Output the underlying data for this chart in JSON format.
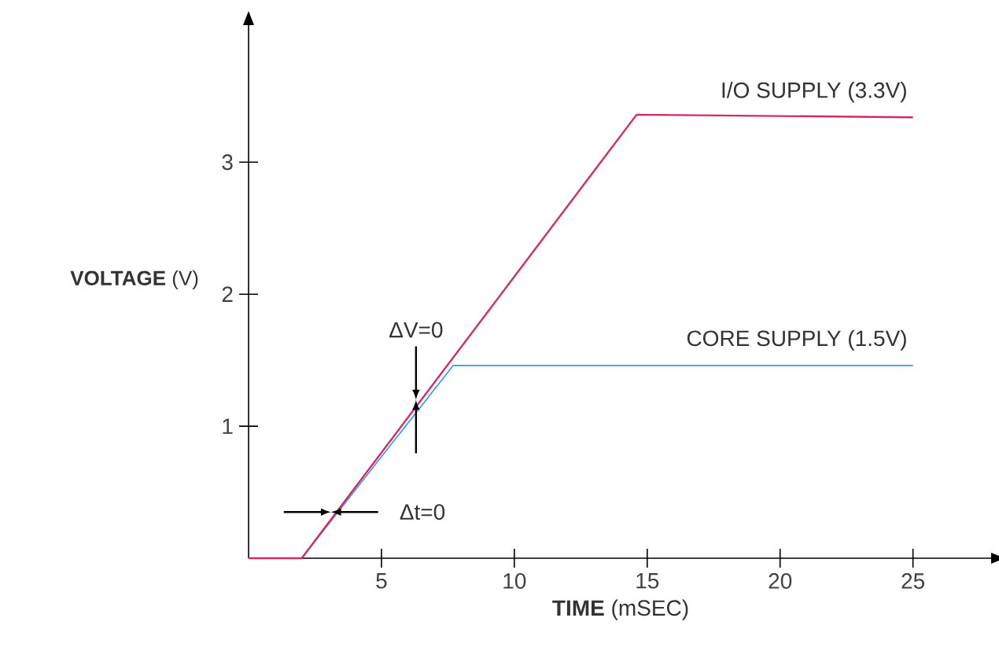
{
  "chart_data": {
    "type": "line",
    "xlabel": "**TIME** (mSEC)",
    "ylabel": "**VOLTAGE** (V)",
    "xlim": [
      0,
      28
    ],
    "ylim": [
      0,
      4.05
    ],
    "xticks": [
      5,
      10,
      15,
      20,
      25
    ],
    "yticks": [
      1,
      2,
      3
    ],
    "grid": false,
    "legend": false,
    "marker": "none",
    "line_style": "solid",
    "series": [
      {
        "name": "I/O SUPPLY (3.3V)",
        "color": "#d42a6b",
        "x": [
          0,
          2,
          14.6,
          25
        ],
        "values": [
          0,
          0,
          3.36,
          3.34
        ]
      },
      {
        "name": "CORE SUPPLY (1.5V)",
        "color": "#2f9ade",
        "x": [
          2,
          7.7,
          25
        ],
        "values": [
          0,
          1.46,
          1.46
        ]
      }
    ],
    "annotations": [
      {
        "text": "ΔV=0",
        "x": 6.3,
        "y": 1.2
      },
      {
        "text": "Δt=0",
        "x": 3.1,
        "y": 0.35
      }
    ]
  }
}
